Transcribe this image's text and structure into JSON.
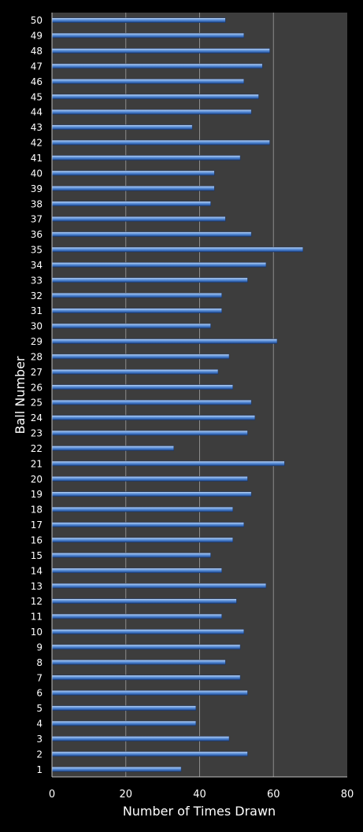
{
  "chart_data": {
    "type": "bar",
    "orientation": "horizontal",
    "title": "",
    "xlabel": "Number of Times Drawn",
    "ylabel": "Ball Number",
    "xlim": [
      0,
      80
    ],
    "xticks": [
      "0",
      "20",
      "40",
      "60",
      "80"
    ],
    "grid": "vertical",
    "categories": [
      "1",
      "2",
      "3",
      "4",
      "5",
      "6",
      "7",
      "8",
      "9",
      "10",
      "11",
      "12",
      "13",
      "14",
      "15",
      "16",
      "17",
      "18",
      "19",
      "20",
      "21",
      "22",
      "23",
      "24",
      "25",
      "26",
      "27",
      "28",
      "29",
      "30",
      "31",
      "32",
      "33",
      "34",
      "35",
      "36",
      "37",
      "38",
      "39",
      "40",
      "41",
      "42",
      "43",
      "44",
      "45",
      "46",
      "47",
      "48",
      "49",
      "50"
    ],
    "values": [
      35,
      53,
      48,
      39,
      39,
      53,
      51,
      47,
      51,
      52,
      46,
      50,
      58,
      46,
      43,
      49,
      52,
      49,
      54,
      53,
      63,
      33,
      53,
      55,
      54,
      49,
      45,
      48,
      61,
      43,
      46,
      46,
      53,
      58,
      68,
      54,
      47,
      43,
      44,
      44,
      51,
      59,
      38,
      54,
      56,
      52,
      57,
      59,
      52,
      47
    ],
    "colors": {
      "plot_background": "#3d3d3d",
      "page_background": "#000000",
      "bar": "#4a7fc8",
      "gridline": "#8c8c8c",
      "text": "#ffffff"
    }
  }
}
